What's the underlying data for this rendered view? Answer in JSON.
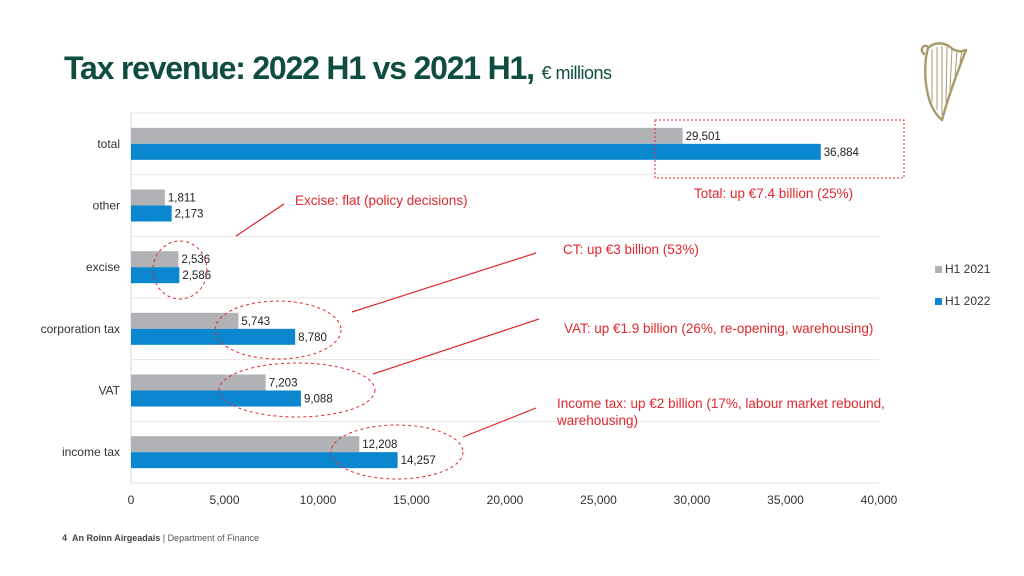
{
  "slide": {
    "title_main": "Tax revenue: 2022 H1 vs 2021 H1,",
    "title_unit": "€ millions",
    "footer_page": "4",
    "footer_org": "An Roinn Airgeadais",
    "footer_sep": " | ",
    "footer_dept": "Department of Finance",
    "logo_icon": "harp-icon"
  },
  "chart_data": {
    "type": "bar",
    "orientation": "horizontal",
    "categories": [
      "total",
      "other",
      "excise",
      "corporation tax",
      "VAT",
      "income tax"
    ],
    "series": [
      {
        "name": "H1 2021",
        "color": "#b0b2b5",
        "values": [
          29501,
          1811,
          2536,
          5743,
          7203,
          12208
        ],
        "labels": [
          "29,501",
          "1,811",
          "2,536",
          "5,743",
          "7,203",
          "12,208"
        ]
      },
      {
        "name": "H1 2022",
        "color": "#0a87cf",
        "values": [
          36884,
          2173,
          2586,
          8780,
          9088,
          14257
        ],
        "labels": [
          "36,884",
          "2,173",
          "2,586",
          "8,780",
          "9,088",
          "14,257"
        ]
      }
    ],
    "xlim": [
      0,
      40000
    ],
    "xticks": [
      0,
      5000,
      10000,
      15000,
      20000,
      25000,
      30000,
      35000,
      40000
    ],
    "xtick_labels": [
      "0",
      "5,000",
      "10,000",
      "15,000",
      "20,000",
      "25,000",
      "30,000",
      "35,000",
      "40,000"
    ],
    "grid": true,
    "legend": "right",
    "annotations": [
      {
        "text": "Total: up €7.4 billion (25%)",
        "target": "total"
      },
      {
        "text": "Excise: flat (policy decisions)",
        "target": "excise"
      },
      {
        "text": "CT: up €3 billion (53%)",
        "target": "corporation tax"
      },
      {
        "text": "VAT: up €1.9 billion (26%, re-opening, warehousing)",
        "target": "VAT"
      },
      {
        "text": "Income tax: up €2 billion (17%, labour market rebound,",
        "text2": "warehousing)",
        "target": "income tax"
      }
    ],
    "annotation_color": "#e0282e"
  }
}
